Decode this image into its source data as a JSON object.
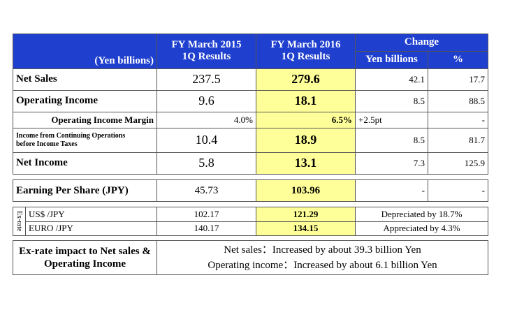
{
  "header": {
    "yen_label": "(Yen billions)",
    "col2015_line1": "FY March 2015",
    "col2015_line2": "1Q Results",
    "col2016_line1": "FY March 2016",
    "col2016_line2": "1Q Results",
    "change": "Change",
    "yen_billions": "Yen billions",
    "percent": "%"
  },
  "rows": [
    {
      "label": "Net Sales",
      "v2015": "237.5",
      "v2016": "279.6",
      "chg": "42.1",
      "pct": "17.7"
    },
    {
      "label": "Operating Income",
      "v2015": "9.6",
      "v2016": "18.1",
      "chg": "8.5",
      "pct": "88.5"
    },
    {
      "label": "Operating Income Margin",
      "v2015": "4.0%",
      "v2016": "6.5%",
      "chg": "+2.5pt",
      "pct": "-"
    },
    {
      "label_line1": "Income from Continuing Operations",
      "label_line2": "before Income Taxes",
      "v2015": "10.4",
      "v2016": "18.9",
      "chg": "8.5",
      "pct": "81.7"
    },
    {
      "label": "Net Income",
      "v2015": "5.8",
      "v2016": "13.1",
      "chg": "7.3",
      "pct": "125.9"
    }
  ],
  "eps": {
    "label": "Earning Per Share (JPY)",
    "v2015": "45.73",
    "v2016": "103.96",
    "chg": "-",
    "pct": "-"
  },
  "exrate": {
    "side_label": "Ex-rate",
    "rows": [
      {
        "label": "US$ /JPY",
        "v2015": "102.17",
        "v2016": "121.29",
        "note": "Depreciated by 18.7%"
      },
      {
        "label": "EURO /JPY",
        "v2015": "140.17",
        "v2016": "134.15",
        "note": "Appreciated by 4.3%"
      }
    ]
  },
  "impact": {
    "label_line1": "Ex-rate impact to Net sales &",
    "label_line2": "Operating Income",
    "line1": "Net sales：Increased by about 39.3 billion Yen",
    "line2": "Operating income：Increased by about 6.1 billion Yen"
  },
  "colors": {
    "header_bg": "#1f3fcf",
    "highlight": "#ffff99"
  }
}
